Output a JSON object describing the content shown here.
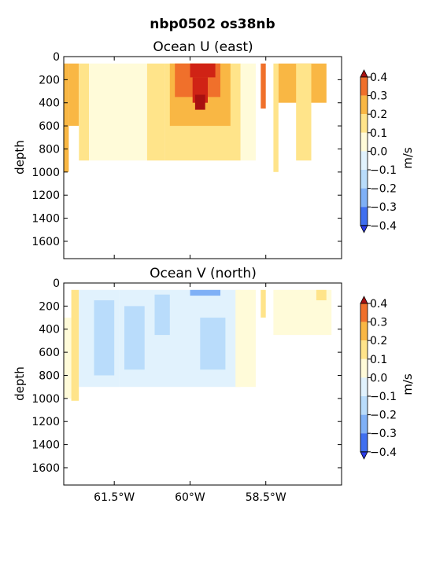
{
  "suptitle": "nbp0502 os38nb",
  "colors": {
    "-0.4": "#2b3be8",
    "-0.3": "#3f6ff0",
    "-0.2": "#7fb0f6",
    "-0.1": "#b9dcfb",
    "0.0": "#e1f2fd",
    "0.05": "#fffbd9",
    "0.1": "#ffe48a",
    "0.2": "#f9b744",
    "0.3": "#f0702b",
    "0.4": "#d02315",
    "extreme": "#a81010"
  },
  "chart_data": [
    {
      "type": "heatmap",
      "title": "Ocean U (east)",
      "ylabel": "depth",
      "ylim": [
        1750,
        0
      ],
      "xlim": [
        -62.5,
        -57.0
      ],
      "yticks": [
        "0",
        "200",
        "400",
        "600",
        "800",
        "1000",
        "1200",
        "1400",
        "1600"
      ],
      "xticks": [],
      "colorbar": {
        "label": "m/s",
        "levels": [
          -0.4,
          -0.3,
          -0.2,
          -0.1,
          0.0,
          0.1,
          0.2,
          0.3,
          0.4
        ],
        "ticklabels": [
          "0.4",
          "0.3",
          "0.2",
          "0.1",
          "0.0",
          "−0.1",
          "−0.2",
          "−0.3",
          "−0.4"
        ]
      },
      "blocks": [
        {
          "lon": [
            -62.5,
            -62.4
          ],
          "depth": [
            60,
            1000
          ],
          "value": 0.2
        },
        {
          "lon": [
            -62.4,
            -62.2
          ],
          "depth": [
            60,
            600
          ],
          "value": 0.25
        },
        {
          "lon": [
            -62.2,
            -62.0
          ],
          "depth": [
            60,
            900
          ],
          "value": 0.15
        },
        {
          "lon": [
            -62.0,
            -61.3
          ],
          "depth": [
            60,
            900
          ],
          "value": 0.05
        },
        {
          "lon": [
            -61.3,
            -60.85
          ],
          "depth": [
            60,
            900
          ],
          "value": 0.05
        },
        {
          "lon": [
            -60.85,
            -60.5
          ],
          "depth": [
            60,
            900
          ],
          "value": 0.15
        },
        {
          "lon": [
            -60.5,
            -59.0
          ],
          "depth": [
            60,
            900
          ],
          "value": 0.15
        },
        {
          "lon": [
            -60.4,
            -59.2
          ],
          "depth": [
            60,
            600
          ],
          "value": 0.25
        },
        {
          "lon": [
            -60.3,
            -59.4
          ],
          "depth": [
            60,
            350
          ],
          "value": 0.3
        },
        {
          "lon": [
            -60.0,
            -59.5
          ],
          "depth": [
            60,
            180
          ],
          "value": 0.4
        },
        {
          "lon": [
            -59.95,
            -59.65
          ],
          "depth": [
            180,
            400
          ],
          "value": 0.4
        },
        {
          "lon": [
            -59.9,
            -59.7
          ],
          "depth": [
            330,
            460
          ],
          "value": 0.45
        },
        {
          "lon": [
            -59.0,
            -58.7
          ],
          "depth": [
            60,
            900
          ],
          "value": 0.05
        },
        {
          "lon": [
            -58.6,
            -58.5
          ],
          "depth": [
            60,
            450
          ],
          "value": 0.3
        },
        {
          "lon": [
            -58.35,
            -58.25
          ],
          "depth": [
            60,
            1000
          ],
          "value": 0.1
        },
        {
          "lon": [
            -58.25,
            -57.3
          ],
          "depth": [
            60,
            400
          ],
          "value": 0.2
        },
        {
          "lon": [
            -57.9,
            -57.6
          ],
          "depth": [
            60,
            900
          ],
          "value": 0.1
        }
      ]
    },
    {
      "type": "heatmap",
      "title": "Ocean V (north)",
      "ylabel": "depth",
      "xlabel": "",
      "ylim": [
        1750,
        0
      ],
      "xlim": [
        -62.5,
        -57.0
      ],
      "yticks": [
        "0",
        "200",
        "400",
        "600",
        "800",
        "1000",
        "1200",
        "1400",
        "1600"
      ],
      "xticks": [
        {
          "lon": -61.5,
          "label": "61.5°W"
        },
        {
          "lon": -60.0,
          "label": "60°W"
        },
        {
          "lon": -58.5,
          "label": "58.5°W"
        }
      ],
      "colorbar": {
        "label": "m/s",
        "levels": [
          -0.4,
          -0.3,
          -0.2,
          -0.1,
          0.0,
          0.1,
          0.2,
          0.3,
          0.4
        ],
        "ticklabels": [
          "0.4",
          "0.3",
          "0.2",
          "0.1",
          "0.0",
          "−0.1",
          "−0.2",
          "−0.3",
          "−0.4"
        ]
      },
      "blocks": [
        {
          "lon": [
            -62.5,
            -62.35
          ],
          "depth": [
            300,
            1000
          ],
          "value": 0.05
        },
        {
          "lon": [
            -62.35,
            -62.2
          ],
          "depth": [
            60,
            1020
          ],
          "value": 0.1
        },
        {
          "lon": [
            -62.2,
            -61.4
          ],
          "depth": [
            60,
            900
          ],
          "value": -0.05
        },
        {
          "lon": [
            -61.9,
            -61.5
          ],
          "depth": [
            150,
            800
          ],
          "value": -0.15
        },
        {
          "lon": [
            -61.4,
            -59.0
          ],
          "depth": [
            60,
            900
          ],
          "value": -0.05
        },
        {
          "lon": [
            -61.3,
            -60.9
          ],
          "depth": [
            200,
            750
          ],
          "value": -0.15
        },
        {
          "lon": [
            -60.7,
            -60.4
          ],
          "depth": [
            100,
            450
          ],
          "value": -0.15
        },
        {
          "lon": [
            -60.0,
            -59.4
          ],
          "depth": [
            60,
            110
          ],
          "value": -0.25
        },
        {
          "lon": [
            -59.8,
            -59.3
          ],
          "depth": [
            300,
            750
          ],
          "value": -0.15
        },
        {
          "lon": [
            -59.1,
            -58.7
          ],
          "depth": [
            60,
            900
          ],
          "value": 0.05
        },
        {
          "lon": [
            -58.6,
            -58.5
          ],
          "depth": [
            60,
            300
          ],
          "value": 0.1
        },
        {
          "lon": [
            -58.35,
            -57.2
          ],
          "depth": [
            60,
            450
          ],
          "value": 0.05
        },
        {
          "lon": [
            -57.5,
            -57.3
          ],
          "depth": [
            60,
            150
          ],
          "value": 0.1
        }
      ]
    }
  ]
}
